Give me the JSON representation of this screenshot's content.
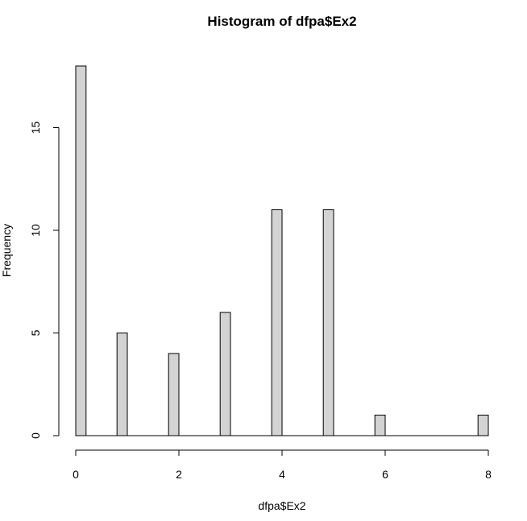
{
  "chart_data": {
    "type": "bar",
    "title": "Histogram of dfpa$Ex2",
    "xlabel": "dfpa$Ex2",
    "ylabel": "Frequency",
    "bins": [
      {
        "start": 0.0,
        "end": 0.2,
        "count": 18
      },
      {
        "start": 0.8,
        "end": 1.0,
        "count": 5
      },
      {
        "start": 1.8,
        "end": 2.0,
        "count": 4
      },
      {
        "start": 2.8,
        "end": 3.0,
        "count": 6
      },
      {
        "start": 3.8,
        "end": 4.0,
        "count": 11
      },
      {
        "start": 4.8,
        "end": 5.0,
        "count": 11
      },
      {
        "start": 5.8,
        "end": 6.0,
        "count": 1
      },
      {
        "start": 7.8,
        "end": 8.0,
        "count": 1
      }
    ],
    "xlim": [
      0,
      8
    ],
    "ylim": [
      0,
      18
    ],
    "x_ticks": [
      0,
      2,
      4,
      6,
      8
    ],
    "y_ticks": [
      0,
      5,
      10,
      15
    ],
    "grid": false,
    "bar_color": "#d3d3d3",
    "edge_color": "#000000"
  }
}
